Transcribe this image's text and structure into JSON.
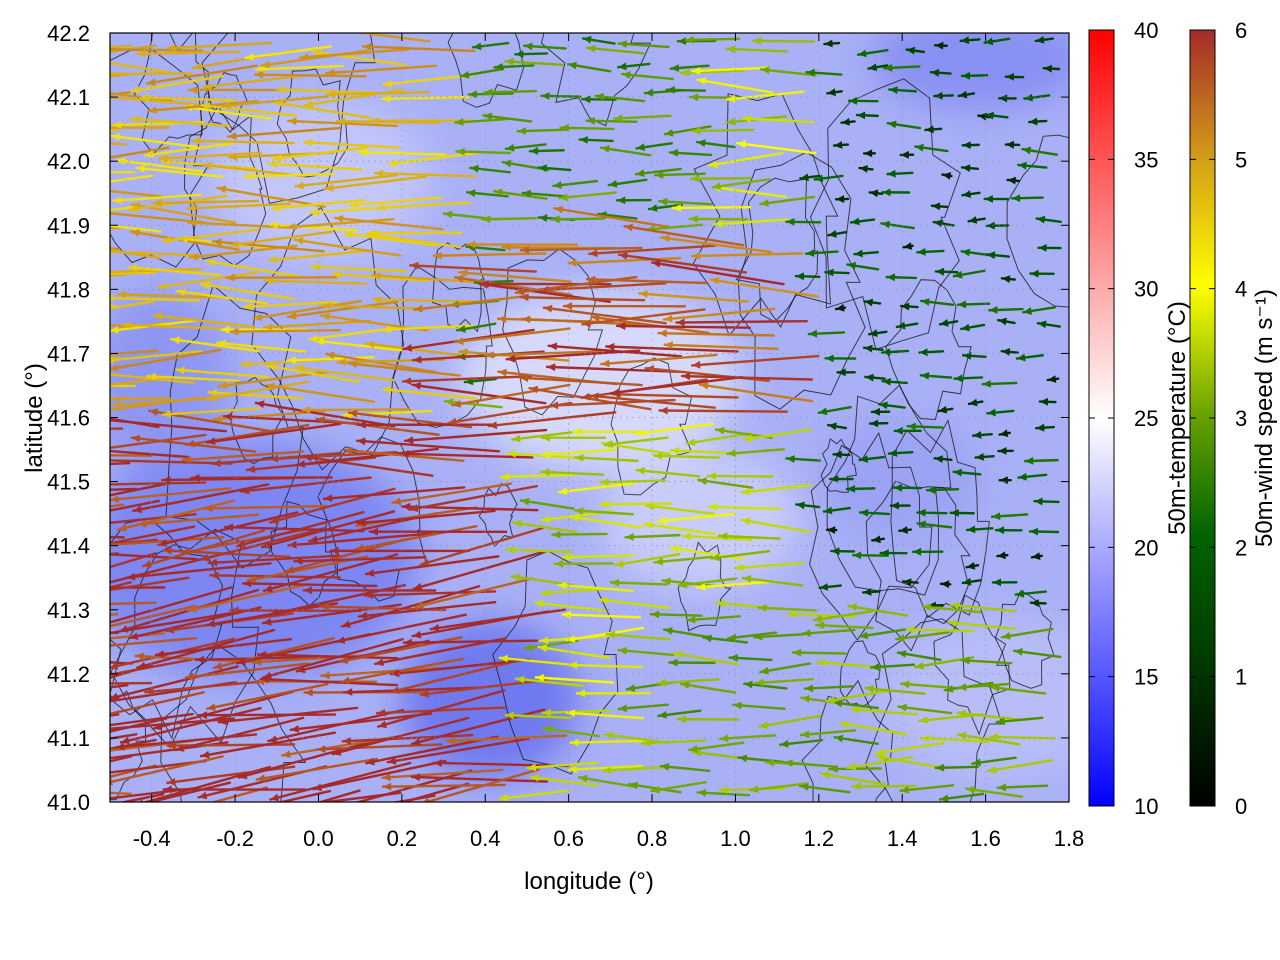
{
  "chart_data": {
    "type": "vector-field",
    "xlabel": "longitude (°)",
    "ylabel": "latitude (°)",
    "xlim": [
      -0.5,
      1.8
    ],
    "ylim": [
      41.0,
      42.2
    ],
    "xticks": [
      "-0.4",
      "-0.2",
      "0.0",
      "0.2",
      "0.4",
      "0.6",
      "0.8",
      "1.0",
      "1.2",
      "1.4",
      "1.6",
      "1.8"
    ],
    "xtick_values": [
      -0.4,
      -0.2,
      0.0,
      0.2,
      0.4,
      0.6,
      0.8,
      1.0,
      1.2,
      1.4,
      1.6,
      1.8
    ],
    "yticks": [
      "41.0",
      "41.1",
      "41.2",
      "41.3",
      "41.4",
      "41.5",
      "41.6",
      "41.7",
      "41.8",
      "41.9",
      "42.0",
      "42.1",
      "42.2"
    ],
    "ytick_values": [
      41.0,
      41.1,
      41.2,
      41.3,
      41.4,
      41.5,
      41.6,
      41.7,
      41.8,
      41.9,
      42.0,
      42.1,
      42.2
    ],
    "grid": true,
    "background_field": {
      "name": "50m-temperature",
      "colorbar_label": "50m-temperature (°C)",
      "range": [
        10,
        40
      ],
      "ticks": [
        "10",
        "15",
        "20",
        "25",
        "30",
        "35",
        "40"
      ],
      "tick_values": [
        10,
        15,
        20,
        25,
        30,
        35,
        40
      ],
      "colors": [
        "#0000ff",
        "#ffffff",
        "#ff0000"
      ],
      "typical_value": 19
    },
    "vectors": {
      "name": "50m-wind speed",
      "colorbar_label": "50m-wind speed (m s⁻¹)",
      "range": [
        0,
        6
      ],
      "ticks": [
        "0",
        "1",
        "2",
        "3",
        "4",
        "5",
        "6"
      ],
      "tick_values": [
        0,
        1,
        2,
        3,
        4,
        5,
        6
      ],
      "colors": [
        "#000000",
        "#006400",
        "#66a000",
        "#ffff00",
        "#d4a017",
        "#a52a2a"
      ],
      "dominant_direction": "westward",
      "regions": [
        {
          "lon": [
            -0.5,
            0.6
          ],
          "lat": [
            41.0,
            41.6
          ],
          "speed": 6
        },
        {
          "lon": [
            -0.5,
            0.4
          ],
          "lat": [
            41.6,
            42.2
          ],
          "speed": 4.5
        },
        {
          "lon": [
            0.4,
            1.0
          ],
          "lat": [
            41.6,
            42.2
          ],
          "speed": 2
        },
        {
          "lon": [
            0.5,
            1.3
          ],
          "lat": [
            41.6,
            41.9
          ],
          "speed": 5.5
        },
        {
          "lon": [
            1.2,
            1.8
          ],
          "lat": [
            41.3,
            42.2
          ],
          "speed": 1
        },
        {
          "lon": [
            0.8,
            1.8
          ],
          "lat": [
            41.0,
            41.3
          ],
          "speed": 2.5
        }
      ]
    },
    "contours": {
      "color": "#000000",
      "label": ""
    }
  }
}
